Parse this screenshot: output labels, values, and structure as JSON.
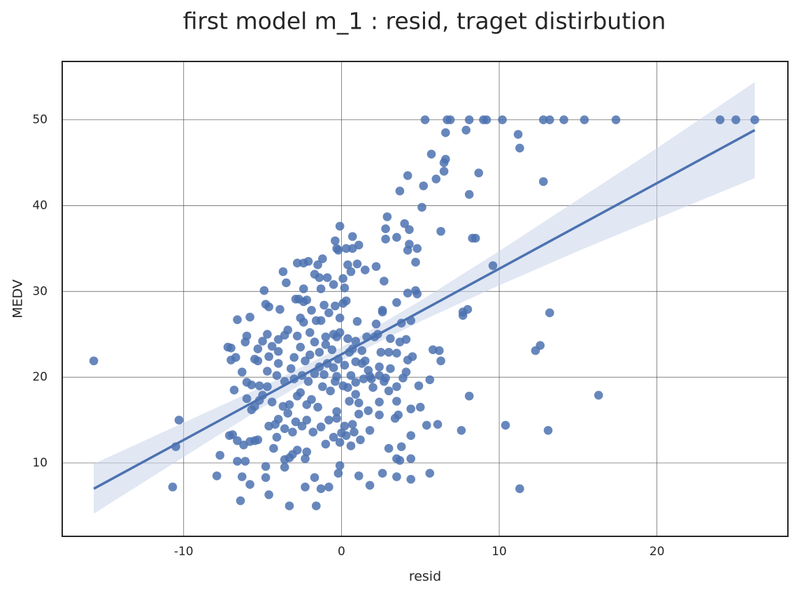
{
  "chart_data": {
    "type": "scatter",
    "title": "first model m_1 : resid, traget distirbution",
    "x_label": "resid",
    "y_label": "MEDV",
    "xlim": [
      -17.7,
      28.3
    ],
    "ylim": [
      1.45,
      56.8
    ],
    "xticks": [
      -10,
      0,
      10,
      20
    ],
    "yticks": [
      10,
      20,
      30,
      40,
      50
    ],
    "grid": true,
    "series": [
      {
        "color": "#4c72b0",
        "x": [
          5.3,
          6.7,
          6.9,
          8.1,
          9.0,
          9.2,
          10.2,
          12.8,
          13.2,
          14.1,
          15.4,
          17.4,
          24.0,
          25.0,
          26.2,
          -15.7,
          -10.3,
          -10.5,
          -10.7,
          11.2,
          11.3,
          6.6,
          7.9,
          5.7,
          6.5,
          6.6,
          6.5,
          8.7,
          4.2,
          6.0,
          12.8,
          5.2,
          3.7,
          8.1,
          5.1,
          2.9,
          4.0,
          2.8,
          4.3,
          6.3,
          2.8,
          8.3,
          8.5,
          3.5,
          9.6,
          13.2,
          7.7,
          8.0,
          7.7,
          12.6,
          12.3,
          16.3,
          13.1,
          10.4,
          11.3,
          8.1,
          7.6,
          6.1,
          6.3,
          6.2,
          5.8,
          5.6,
          5.4,
          5.6,
          4.4,
          3.5,
          4.4,
          3.7,
          3.5,
          3.8,
          3.0,
          2.6,
          1.8,
          1.1,
          4.4,
          4.4,
          5.0,
          4.9,
          4.5,
          4.8,
          4.7,
          4.4,
          3.8,
          4.2,
          3.5,
          2.6,
          2.6,
          4.8,
          4.3,
          4.2,
          4.7,
          2.7,
          2.2,
          1.5,
          1.0,
          0.4,
          1.1,
          0.7,
          0.7,
          0.3,
          0.6,
          -0.3,
          -0.2,
          -0.4,
          -0.1,
          -0.5,
          0.1,
          0.2,
          0.3,
          -0.4,
          0.1,
          -0.1,
          -1.3,
          -1.4,
          -1.7,
          -0.9,
          -1.5,
          -2.4,
          -2.1,
          -2.8,
          -3.7,
          -3.5,
          -1.2,
          -2.4,
          -2.2,
          -2.7,
          -2.9,
          -2.4,
          -3.9,
          -4.6,
          -4.8,
          -4.9,
          -5.8,
          -6.6,
          -6.0,
          -7.0,
          -7.2,
          -7.0,
          -6.7,
          -6.1,
          -6.3,
          -6.0,
          -6.8,
          -6.2,
          -6.6,
          -6.1,
          -6.3,
          -7.1,
          -6.9,
          -6.6,
          -7.7,
          -7.9,
          -5.8,
          -6.4,
          -4.8,
          -4.6,
          -4.8,
          -5.5,
          -5.8,
          -5.3,
          -4.3,
          -4.1,
          -3.6,
          -3.6,
          -3.3,
          -2.3,
          -1.6,
          -1.7,
          -1.3,
          -0.8,
          -0.2,
          -0.1,
          -2.3,
          -2.2,
          -2.8,
          -3.1,
          -3.3,
          -4.2,
          -4.6,
          -4.0,
          -3.7,
          -3.3,
          -4.4,
          -4.7,
          -5.0,
          -5.2,
          -5.5,
          -5.7,
          -5.2,
          -4.7,
          -4.1,
          -3.6,
          -3.0,
          -2.5,
          -2.1,
          -1.7,
          -1.4,
          -0.9,
          -0.5,
          -0.2,
          0.2,
          0.5,
          0.9,
          1.3,
          -0.4,
          -0.7,
          -1.2,
          0.4,
          0.9,
          1.4,
          1.8,
          2.4,
          2.8,
          3.5,
          3.9,
          4.2,
          4.1,
          3.5,
          3.0,
          2.5,
          2.1,
          2.3,
          2.2,
          3.7,
          3.1,
          4.1,
          1.6,
          0.9,
          0.4,
          -0.1,
          -0.3,
          -0.5,
          -1.0,
          -1.6,
          -1.3,
          -2.4,
          -2.0,
          -2.8,
          -3.6,
          -4.0,
          -4.7,
          -5.0,
          -5.3,
          -5.5,
          -5.3,
          -4.6,
          -4.0,
          -3.0,
          -2.3,
          -1.4,
          -1.0,
          -0.6,
          0.7,
          1.0,
          -2.5,
          -2.9,
          -2.2,
          -1.8,
          -1.0,
          -0.5,
          -0.1,
          0.3,
          0.6,
          0.8,
          1.2,
          1.8,
          1.1,
          0.7,
          0.2,
          -0.3,
          -0.8,
          -1.5,
          -2.2,
          -2.8,
          -3.4,
          -3.1,
          -3.6,
          -0.3,
          0.5,
          1.1,
          1.7,
          2.4,
          2.4,
          3.4,
          3.5,
          3.6,
          0.9,
          1.9,
          2.7,
          1.5,
          2.4,
          3.1,
          -6.0,
          -5.7,
          -4.4,
          -3.4,
          -2.6,
          -1.9,
          -1.1,
          -0.8,
          -4.0,
          -3.2,
          -2.6,
          -2.0,
          -1.7,
          -1.1,
          -0.3,
          0.1,
          0.6,
          1.7,
          -2.6,
          -1.9,
          -1.3,
          0.0,
          2.0,
          3.0,
          1.3
        ],
        "values": [
          50,
          50,
          50,
          50,
          50,
          50,
          50,
          50,
          50,
          50,
          50,
          50,
          50,
          50,
          50,
          21.9,
          15.0,
          11.9,
          7.2,
          48.3,
          46.7,
          48.5,
          48.8,
          46.0,
          45.0,
          45.4,
          44.0,
          43.8,
          43.5,
          43.1,
          42.8,
          42.3,
          41.7,
          41.3,
          39.8,
          38.7,
          37.9,
          37.3,
          37.2,
          37.0,
          36.1,
          36.2,
          36.2,
          36.3,
          33.0,
          27.5,
          27.2,
          27.9,
          27.6,
          23.7,
          23.1,
          17.9,
          13.8,
          14.4,
          7.0,
          17.8,
          13.8,
          14.5,
          21.9,
          23.1,
          23.2,
          19.7,
          14.4,
          8.8,
          8.1,
          8.4,
          10.5,
          10.3,
          10.5,
          11.9,
          11.7,
          8.8,
          7.4,
          8.5,
          13.2,
          16.3,
          16.5,
          19.0,
          22.4,
          29.7,
          30.1,
          26.6,
          26.3,
          29.8,
          28.7,
          27.8,
          27.6,
          35.0,
          35.5,
          34.8,
          33.4,
          31.2,
          32.9,
          32.5,
          33.2,
          33.1,
          35.4,
          35.0,
          36.4,
          35.0,
          32.3,
          35.0,
          34.8,
          35.9,
          37.6,
          30.8,
          31.5,
          30.4,
          28.9,
          28.3,
          28.6,
          26.9,
          30.3,
          31.6,
          32.0,
          31.6,
          33.1,
          33.3,
          33.5,
          33.3,
          32.3,
          31.0,
          33.8,
          30.3,
          29.0,
          29.1,
          29.1,
          28.8,
          27.9,
          28.2,
          28.5,
          30.1,
          27.0,
          26.7,
          24.8,
          23.4,
          23.5,
          22.0,
          22.3,
          24.1,
          20.6,
          19.4,
          18.5,
          12.1,
          10.2,
          10.2,
          8.4,
          13.2,
          13.3,
          12.6,
          10.9,
          8.5,
          7.5,
          5.6,
          8.3,
          6.3,
          9.6,
          12.6,
          12.5,
          12.7,
          11.7,
          13.0,
          10.4,
          9.5,
          5.0,
          7.2,
          5.0,
          8.3,
          7.0,
          7.2,
          8.8,
          9.7,
          10.5,
          11.3,
          11.5,
          11.0,
          10.6,
          14.5,
          14.3,
          15.1,
          16.6,
          16.8,
          17.1,
          18.9,
          17.9,
          17.3,
          16.6,
          16.2,
          19.0,
          20.7,
          20.2,
          19.5,
          19.8,
          20.2,
          19.5,
          20.4,
          21.2,
          21.6,
          21.1,
          22.1,
          21.4,
          22.9,
          21.8,
          21.6,
          19.5,
          18.4,
          18.9,
          18.8,
          18.0,
          19.8,
          20.1,
          20.2,
          19.9,
          18.9,
          19.9,
          22.0,
          20.6,
          22.8,
          22.9,
          22.9,
          24.7,
          25.0,
          26.2,
          24.1,
          24.5,
          24.4,
          24.7,
          24.2,
          24.5,
          25.2,
          24.7,
          25.0,
          24.7,
          26.6,
          26.6,
          26.4,
          25.2,
          24.8,
          24.9,
          24.4,
          25.0,
          24.2,
          23.3,
          22.1,
          21.9,
          22.4,
          23.0,
          22.3,
          21.9,
          22.9,
          23.8,
          23.2,
          23.3,
          26.5,
          14.3,
          14.8,
          15.0,
          13.6,
          12.2,
          13.0,
          12.4,
          13.2,
          12.0,
          13.6,
          12.7,
          13.8,
          15.7,
          14.5,
          14.3,
          15.2,
          15.0,
          16.5,
          16.8,
          17.8,
          15.8,
          13.6,
          14.0,
          16.0,
          17.2,
          17.0,
          16.1,
          17.1,
          15.6,
          15.2,
          17.2,
          15.6,
          19.4,
          19.8,
          19.5,
          21.9,
          21.2,
          21.0,
          17.5,
          19.1,
          23.6,
          25.5,
          26.9,
          27.8,
          28.4,
          27.5,
          21.6,
          21.0,
          23.5,
          22.6,
          24.1,
          20.3,
          20.1,
          19.0,
          20.2,
          20.8,
          18.2,
          17.4,
          14.2,
          13.5,
          18.8,
          18.4,
          23.1
        ]
      }
    ],
    "regression": {
      "color": "#4c72b0",
      "x": [
        -15.7,
        26.2
      ],
      "values": [
        7.0,
        48.8
      ]
    },
    "band": {
      "color": "#c8d4ea",
      "x": [
        -15.7,
        -10,
        -5,
        0,
        5,
        10,
        15,
        20,
        26.2
      ],
      "upper": [
        9.9,
        14.7,
        18.9,
        23.5,
        28.9,
        34.7,
        40.7,
        46.7,
        54.4
      ],
      "lower": [
        4.1,
        10.7,
        16.5,
        21.9,
        26.5,
        30.7,
        34.7,
        38.5,
        43.2
      ]
    }
  }
}
